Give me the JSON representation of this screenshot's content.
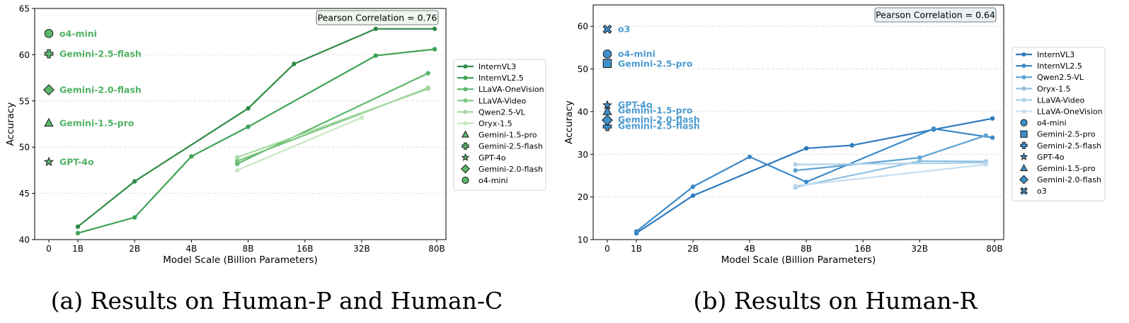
{
  "chart_data": [
    {
      "type": "line",
      "caption": "(a) Results on Human-P and Human-C",
      "xlabel": "Model Scale (Billion Parameters)",
      "ylabel": "Accuracy",
      "ylim": [
        40,
        65
      ],
      "yticks": [
        40,
        45,
        50,
        55,
        60,
        65
      ],
      "xticks": [
        "0",
        "1B",
        "2B",
        "4B",
        "8B",
        "16B",
        "32B",
        "80B"
      ],
      "correlation": "Pearson Correlation = 0.76",
      "legend_position": "right",
      "colors": [
        "#2e8b47",
        "#3fa356",
        "#5cb86c",
        "#7cc681",
        "#a6d9a0",
        "#c7e8c0"
      ],
      "series": [
        {
          "name": "InternVL3",
          "points": [
            [
              1,
              41.4
            ],
            [
              2,
              46.3
            ],
            [
              8,
              54.2
            ],
            [
              14,
              59.0
            ],
            [
              38,
              62.8
            ],
            [
              78,
              62.8
            ]
          ]
        },
        {
          "name": "InternVL2.5",
          "points": [
            [
              1,
              40.7
            ],
            [
              2,
              42.4
            ],
            [
              4,
              49.0
            ],
            [
              8,
              52.2
            ],
            [
              38,
              59.9
            ],
            [
              78,
              60.6
            ]
          ]
        },
        {
          "name": "LLaVA-OneVision",
          "points": [
            [
              7,
              48.2
            ],
            [
              72,
              58.0
            ]
          ]
        },
        {
          "name": "LLaVA-Video",
          "points": [
            [
              7,
              48.5
            ],
            [
              72,
              56.4
            ]
          ]
        },
        {
          "name": "Qwen2.5-VL",
          "points": [
            [
              7,
              48.9
            ],
            [
              72,
              56.3
            ]
          ]
        },
        {
          "name": "Oryx-1.5",
          "points": [
            [
              7,
              47.5
            ],
            [
              32,
              53.2
            ]
          ]
        }
      ],
      "closed_models": [
        {
          "name": "Gemini-1.5-pro",
          "marker": "triangle",
          "value": 52.6
        },
        {
          "name": "Gemini-2.5-flash",
          "marker": "plus",
          "value": 60.1
        },
        {
          "name": "GPT-4o",
          "marker": "star",
          "value": 48.4
        },
        {
          "name": "Gemini-2.0-flash",
          "marker": "diamond",
          "value": 56.2
        },
        {
          "name": "o4-mini",
          "marker": "circle",
          "value": 62.3
        }
      ]
    },
    {
      "type": "line",
      "caption": "(b) Results on Human-R",
      "xlabel": "Model Scale (Billion Parameters)",
      "ylabel": "Accuracy",
      "ylim": [
        10,
        65
      ],
      "yticks": [
        10,
        20,
        30,
        40,
        50,
        60
      ],
      "xticks": [
        "0",
        "1B",
        "2B",
        "4B",
        "8B",
        "16B",
        "32B",
        "80B"
      ],
      "correlation": "Pearson Correlation = 0.64",
      "legend_position": "right",
      "colors": [
        "#2f7bbf",
        "#3d8ac8",
        "#5ea3d3",
        "#8dc0e0",
        "#aed1ea",
        "#c6ddf0"
      ],
      "series": [
        {
          "name": "InternVL3",
          "points": [
            [
              1,
              11.5
            ],
            [
              2,
              20.3
            ],
            [
              8,
              31.4
            ],
            [
              14,
              32.1
            ],
            [
              38,
              35.8
            ],
            [
              78,
              38.4
            ]
          ]
        },
        {
          "name": "InternVL2.5",
          "points": [
            [
              1,
              11.9
            ],
            [
              2,
              22.4
            ],
            [
              4,
              29.4
            ],
            [
              8,
              23.5
            ],
            [
              38,
              36.0
            ],
            [
              78,
              33.9
            ]
          ]
        },
        {
          "name": "Qwen2.5-VL",
          "points": [
            [
              7,
              26.2
            ],
            [
              32,
              29.2
            ],
            [
              72,
              34.4
            ]
          ]
        },
        {
          "name": "Oryx-1.5",
          "points": [
            [
              7,
              22.3
            ],
            [
              32,
              28.4
            ],
            [
              72,
              28.3
            ]
          ]
        },
        {
          "name": "LLaVA-Video",
          "points": [
            [
              7,
              27.6
            ],
            [
              72,
              28.0
            ]
          ]
        },
        {
          "name": "LLaVA-OneVision",
          "points": [
            [
              7,
              22.6
            ],
            [
              72,
              27.6
            ]
          ]
        }
      ],
      "closed_models": [
        {
          "name": "o4-mini",
          "marker": "circle",
          "value": 53.5
        },
        {
          "name": "Gemini-2.5-pro",
          "marker": "square",
          "value": 51.3
        },
        {
          "name": "Gemini-2.5-flash",
          "marker": "plus",
          "value": 36.5
        },
        {
          "name": "GPT-4o",
          "marker": "star",
          "value": 41.5
        },
        {
          "name": "Gemini-1.5-pro",
          "marker": "triangle",
          "value": 40.0
        },
        {
          "name": "Gemini-2.0-flash",
          "marker": "diamond",
          "value": 38.0
        },
        {
          "name": "o3",
          "marker": "x",
          "value": 59.3
        }
      ],
      "annotation_order": [
        "o3",
        "o4-mini",
        "Gemini-2.5-pro",
        "GPT-4o",
        "Gemini-1.5-pro",
        "Gemini-2.0-flash",
        "Gemini-2.5-flash"
      ]
    }
  ]
}
